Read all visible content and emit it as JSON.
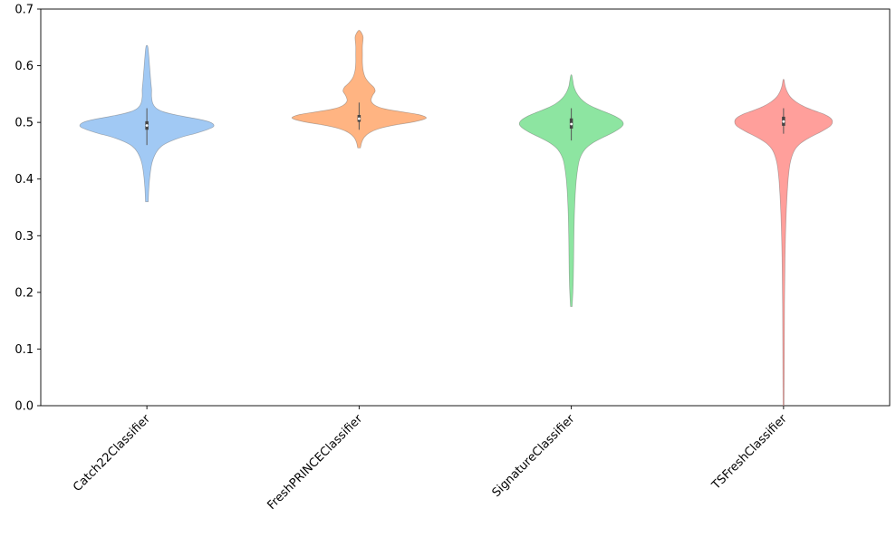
{
  "figure": {
    "background": "#ffffff",
    "plot_border_color": "#000000"
  },
  "chart_data": {
    "type": "violin",
    "title": "",
    "xlabel": "",
    "ylabel": "",
    "grid": false,
    "legend": null,
    "ylim": [
      0.0,
      0.7
    ],
    "yticks": [
      0.0,
      0.1,
      0.2,
      0.3,
      0.4,
      0.5,
      0.6,
      0.7
    ],
    "categories": [
      "Catch22Classifier",
      "FreshPRINCEClassifier",
      "SignatureClassifier",
      "TSFreshClassifier"
    ],
    "series": [
      {
        "name": "Catch22Classifier",
        "color": "#a1c9f4",
        "relwidth": 0.63,
        "min": 0.36,
        "max": 0.635,
        "median": 0.4945,
        "q1": 0.487,
        "q3": 0.502,
        "whisker_low": 0.46,
        "whisker_high": 0.525,
        "profile": [
          [
            0.36,
            0.02
          ],
          [
            0.385,
            0.03
          ],
          [
            0.41,
            0.05
          ],
          [
            0.43,
            0.08
          ],
          [
            0.447,
            0.14
          ],
          [
            0.458,
            0.22
          ],
          [
            0.466,
            0.34
          ],
          [
            0.474,
            0.52
          ],
          [
            0.481,
            0.74
          ],
          [
            0.488,
            0.92
          ],
          [
            0.493,
            1.0
          ],
          [
            0.499,
            0.97
          ],
          [
            0.504,
            0.84
          ],
          [
            0.509,
            0.62
          ],
          [
            0.514,
            0.4
          ],
          [
            0.519,
            0.24
          ],
          [
            0.525,
            0.14
          ],
          [
            0.533,
            0.09
          ],
          [
            0.545,
            0.07
          ],
          [
            0.558,
            0.07
          ],
          [
            0.57,
            0.06
          ],
          [
            0.585,
            0.05
          ],
          [
            0.6,
            0.04
          ],
          [
            0.615,
            0.03
          ],
          [
            0.628,
            0.02
          ],
          [
            0.635,
            0.01
          ]
        ]
      },
      {
        "name": "FreshPRINCEClassifier",
        "color": "#ffb482",
        "relwidth": 0.63,
        "min": 0.455,
        "max": 0.662,
        "median": 0.5065,
        "q1": 0.501,
        "q3": 0.513,
        "whisker_low": 0.487,
        "whisker_high": 0.535,
        "profile": [
          [
            0.455,
            0.02
          ],
          [
            0.465,
            0.04
          ],
          [
            0.474,
            0.08
          ],
          [
            0.482,
            0.16
          ],
          [
            0.489,
            0.3
          ],
          [
            0.495,
            0.52
          ],
          [
            0.5,
            0.78
          ],
          [
            0.505,
            0.96
          ],
          [
            0.509,
            1.0
          ],
          [
            0.514,
            0.88
          ],
          [
            0.519,
            0.62
          ],
          [
            0.524,
            0.38
          ],
          [
            0.53,
            0.24
          ],
          [
            0.538,
            0.18
          ],
          [
            0.547,
            0.2
          ],
          [
            0.555,
            0.24
          ],
          [
            0.562,
            0.22
          ],
          [
            0.57,
            0.15
          ],
          [
            0.58,
            0.09
          ],
          [
            0.592,
            0.06
          ],
          [
            0.605,
            0.05
          ],
          [
            0.62,
            0.05
          ],
          [
            0.635,
            0.05
          ],
          [
            0.65,
            0.06
          ],
          [
            0.657,
            0.04
          ],
          [
            0.662,
            0.01
          ]
        ]
      },
      {
        "name": "SignatureClassifier",
        "color": "#8de5a1",
        "relwidth": 0.49,
        "min": 0.175,
        "max": 0.583,
        "median": 0.497,
        "q1": 0.489,
        "q3": 0.507,
        "whisker_low": 0.468,
        "whisker_high": 0.525,
        "profile": [
          [
            0.175,
            0.015
          ],
          [
            0.2,
            0.03
          ],
          [
            0.23,
            0.04
          ],
          [
            0.26,
            0.045
          ],
          [
            0.3,
            0.05
          ],
          [
            0.34,
            0.06
          ],
          [
            0.38,
            0.08
          ],
          [
            0.41,
            0.11
          ],
          [
            0.435,
            0.16
          ],
          [
            0.452,
            0.26
          ],
          [
            0.463,
            0.4
          ],
          [
            0.473,
            0.6
          ],
          [
            0.482,
            0.8
          ],
          [
            0.49,
            0.94
          ],
          [
            0.497,
            1.0
          ],
          [
            0.504,
            0.96
          ],
          [
            0.511,
            0.84
          ],
          [
            0.518,
            0.66
          ],
          [
            0.525,
            0.47
          ],
          [
            0.533,
            0.3
          ],
          [
            0.542,
            0.18
          ],
          [
            0.552,
            0.1
          ],
          [
            0.563,
            0.05
          ],
          [
            0.573,
            0.03
          ],
          [
            0.583,
            0.01
          ]
        ]
      },
      {
        "name": "TSFreshClassifier",
        "color": "#ff9f9b",
        "relwidth": 0.46,
        "min": 0.0,
        "max": 0.575,
        "median": 0.5015,
        "q1": 0.494,
        "q3": 0.51,
        "whisker_low": 0.48,
        "whisker_high": 0.525,
        "profile": [
          [
            0.0,
            0.01
          ],
          [
            0.03,
            0.012
          ],
          [
            0.06,
            0.014
          ],
          [
            0.1,
            0.016
          ],
          [
            0.14,
            0.018
          ],
          [
            0.18,
            0.02
          ],
          [
            0.22,
            0.025
          ],
          [
            0.26,
            0.03
          ],
          [
            0.3,
            0.04
          ],
          [
            0.34,
            0.055
          ],
          [
            0.375,
            0.075
          ],
          [
            0.405,
            0.1
          ],
          [
            0.43,
            0.14
          ],
          [
            0.45,
            0.22
          ],
          [
            0.463,
            0.35
          ],
          [
            0.474,
            0.55
          ],
          [
            0.484,
            0.78
          ],
          [
            0.493,
            0.95
          ],
          [
            0.5,
            1.0
          ],
          [
            0.507,
            0.97
          ],
          [
            0.514,
            0.84
          ],
          [
            0.521,
            0.62
          ],
          [
            0.528,
            0.42
          ],
          [
            0.536,
            0.26
          ],
          [
            0.545,
            0.14
          ],
          [
            0.555,
            0.07
          ],
          [
            0.565,
            0.03
          ],
          [
            0.575,
            0.01
          ]
        ]
      }
    ]
  }
}
